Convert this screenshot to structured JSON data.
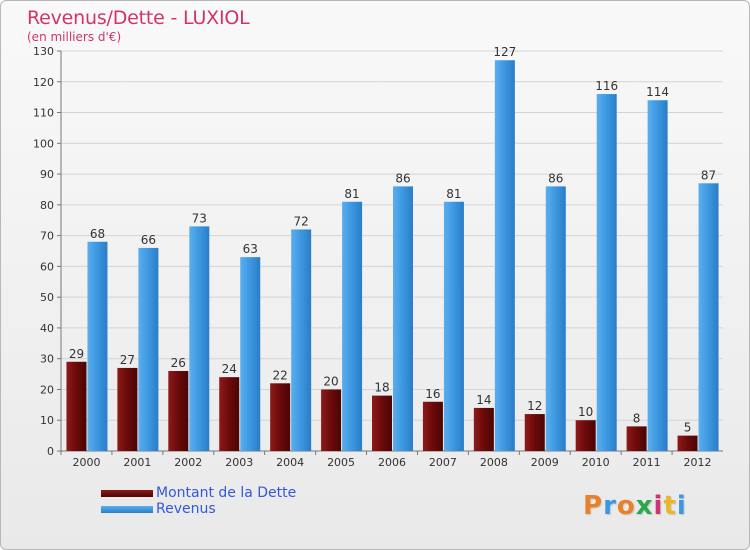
{
  "title": "Revenus/Dette - LUXIOL",
  "subtitle": "(en milliers d'€)",
  "logo_text": "Proxiti",
  "colors": {
    "title": "#d0346c",
    "debt": "#6b0a0a",
    "revenue": "#3c97e0",
    "legend_text": "#3557d8"
  },
  "chart_data": {
    "type": "bar",
    "title": "Revenus/Dette - LUXIOL",
    "subtitle": "(en milliers d'€)",
    "categories": [
      "2000",
      "2001",
      "2002",
      "2003",
      "2004",
      "2005",
      "2006",
      "2007",
      "2008",
      "2009",
      "2010",
      "2011",
      "2012"
    ],
    "series": [
      {
        "name": "Montant de la Dette",
        "values": [
          29,
          27,
          26,
          24,
          22,
          20,
          18,
          16,
          14,
          12,
          10,
          8,
          5
        ]
      },
      {
        "name": "Revenus",
        "values": [
          68,
          66,
          73,
          63,
          72,
          81,
          86,
          81,
          127,
          86,
          116,
          114,
          87
        ]
      }
    ],
    "ylim": [
      0,
      130
    ],
    "yticks": [
      0,
      10,
      20,
      30,
      40,
      50,
      60,
      70,
      80,
      90,
      100,
      110,
      120,
      130
    ],
    "grid": true,
    "legend_position": "bottom-left"
  }
}
